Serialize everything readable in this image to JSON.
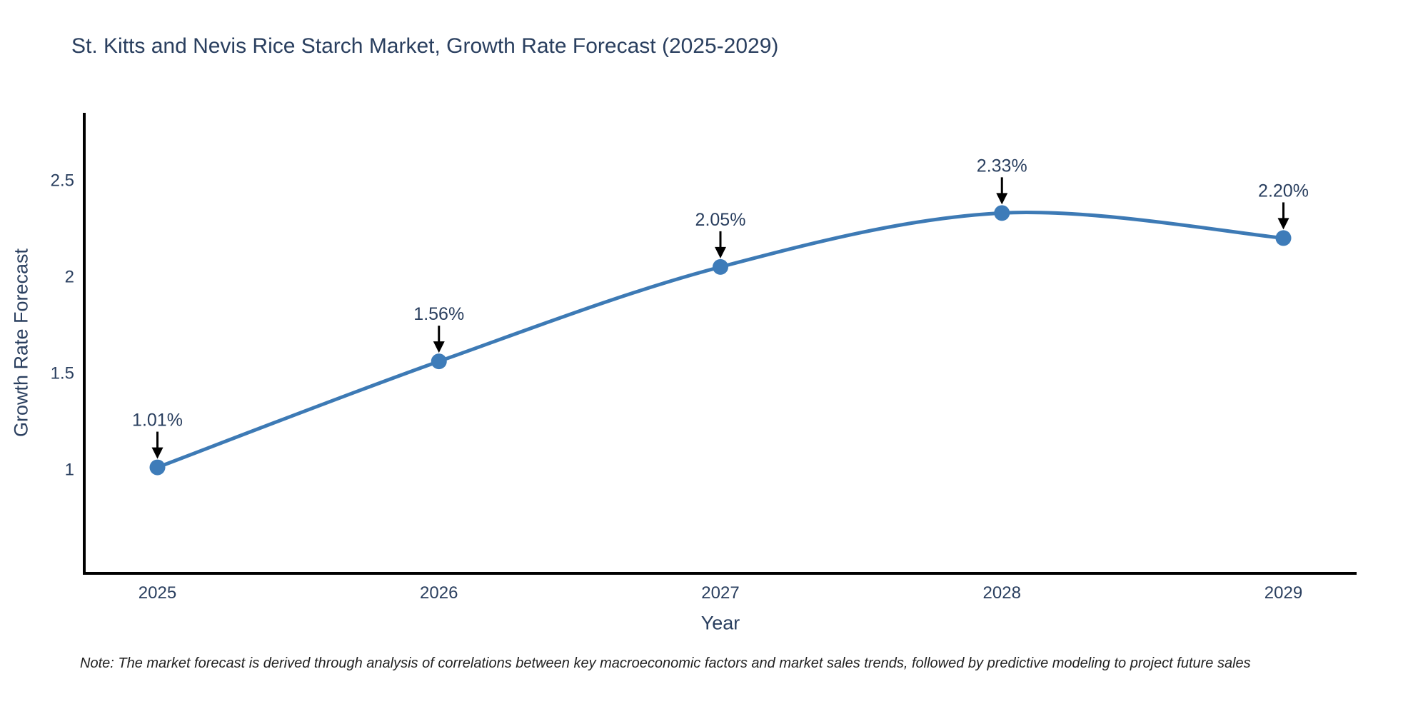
{
  "chart_data": {
    "type": "line",
    "title": "St. Kitts and Nevis Rice Starch Market, Growth Rate Forecast (2025-2029)",
    "xlabel": "Year",
    "ylabel": "Growth Rate Forecast",
    "categories": [
      "2025",
      "2026",
      "2027",
      "2028",
      "2029"
    ],
    "x": [
      2025,
      2026,
      2027,
      2028,
      2029
    ],
    "values": [
      1.01,
      1.56,
      2.05,
      2.33,
      2.2
    ],
    "point_labels": [
      "1.01%",
      "1.56%",
      "2.05%",
      "2.33%",
      "2.20%"
    ],
    "yticks": [
      1,
      1.5,
      2,
      2.5
    ],
    "ylim": [
      0.46,
      2.85
    ],
    "xlim": [
      2024.74,
      2029.26
    ],
    "line_shape": "spline",
    "grid": false,
    "legend_position": "none",
    "annotation_style": "value-label-with-down-arrow",
    "line_color": "#3d7ab5",
    "marker_color": "#3e7cb9",
    "arrow_color": "#000000",
    "axis_color": "#000000",
    "text_color": "#2a3f5f",
    "note": "Note: The market forecast is derived through analysis of correlations between key macroeconomic factors and market sales trends, followed by predictive modeling to project future sales"
  }
}
